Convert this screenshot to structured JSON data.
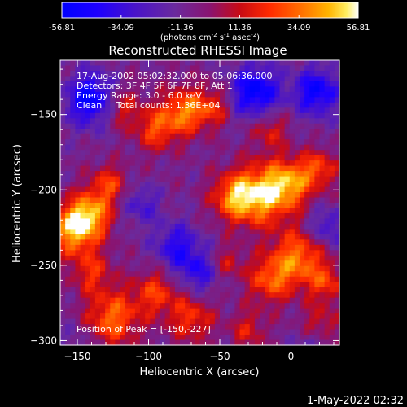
{
  "chart_data": {
    "type": "heatmap",
    "title": "Reconstructed RHESSI Image",
    "xlabel": "Heliocentric X (arcsec)",
    "ylabel": "Heliocentric Y (arcsec)",
    "xlim": [
      -162,
      34
    ],
    "ylim": [
      -303,
      -114
    ],
    "x_ticks": [
      -150,
      -100,
      -50,
      0
    ],
    "y_ticks": [
      -150,
      -200,
      -250,
      -300
    ],
    "colorbar": {
      "ticks": [
        "-56.81",
        "-34.09",
        "-11.36",
        "11.36",
        "34.09",
        "56.81"
      ],
      "unit_text": "(photons cm",
      "unit_sup1": "-2",
      "unit_mid1": " s",
      "unit_sup2": "-1",
      "unit_mid2": " asec",
      "unit_sup3": "-2",
      "unit_end": ")",
      "range": [
        -56.81,
        56.81
      ]
    },
    "info_lines": [
      "17-Aug-2002 05:02:32.000 to 05:06:36.000",
      "Detectors: 3F 4F 5F 6F 7F 8F, Att 1",
      "Energy Range: 3.0 - 6.0 keV",
      "Clean     Total counts: 1.36E+04"
    ],
    "peak_label": "Position of Peak = [-150,-227]",
    "peak": {
      "x": -150,
      "y": -227,
      "value": 56.81
    },
    "intensity_blobs": [
      {
        "x": -152,
        "y": -226,
        "value": 55,
        "sigma": 12
      },
      {
        "x": -140,
        "y": -215,
        "value": 38,
        "sigma": 10
      },
      {
        "x": -128,
        "y": -196,
        "value": 30,
        "sigma": 9
      },
      {
        "x": -20,
        "y": -203,
        "value": 52,
        "sigma": 14
      },
      {
        "x": -40,
        "y": -205,
        "value": 40,
        "sigma": 11
      },
      {
        "x": 0,
        "y": -195,
        "value": 40,
        "sigma": 11
      },
      {
        "x": 20,
        "y": -186,
        "value": 30,
        "sigma": 9
      },
      {
        "x": -75,
        "y": -148,
        "value": 42,
        "sigma": 11
      },
      {
        "x": -95,
        "y": -160,
        "value": 32,
        "sigma": 10
      },
      {
        "x": -55,
        "y": -145,
        "value": 26,
        "sigma": 9
      },
      {
        "x": -120,
        "y": -145,
        "value": 26,
        "sigma": 10
      },
      {
        "x": -15,
        "y": -160,
        "value": 24,
        "sigma": 9
      },
      {
        "x": 5,
        "y": -245,
        "value": 42,
        "sigma": 13
      },
      {
        "x": -15,
        "y": -260,
        "value": 34,
        "sigma": 11
      },
      {
        "x": 25,
        "y": -262,
        "value": 28,
        "sigma": 9
      },
      {
        "x": -125,
        "y": -285,
        "value": 40,
        "sigma": 13
      },
      {
        "x": -95,
        "y": -268,
        "value": 30,
        "sigma": 11
      },
      {
        "x": -140,
        "y": -255,
        "value": 26,
        "sigma": 10
      },
      {
        "x": -70,
        "y": -285,
        "value": 30,
        "sigma": 11
      },
      {
        "x": -30,
        "y": -293,
        "value": 22,
        "sigma": 9
      },
      {
        "x": 20,
        "y": -290,
        "value": 24,
        "sigma": 9
      },
      {
        "x": -45,
        "y": -248,
        "value": 20,
        "sigma": 8
      }
    ],
    "negative_blobs": [
      {
        "x": -140,
        "y": -140,
        "value": -50,
        "sigma": 12
      },
      {
        "x": -25,
        "y": -135,
        "value": -48,
        "sigma": 12
      },
      {
        "x": 18,
        "y": -135,
        "value": -44,
        "sigma": 11
      },
      {
        "x": -80,
        "y": -238,
        "value": -32,
        "sigma": 11
      },
      {
        "x": -65,
        "y": -255,
        "value": -28,
        "sigma": 10
      },
      {
        "x": -105,
        "y": -210,
        "value": -22,
        "sigma": 9
      },
      {
        "x": 25,
        "y": -225,
        "value": -26,
        "sigma": 9
      },
      {
        "x": 15,
        "y": -300,
        "value": -16,
        "sigma": 8
      },
      {
        "x": -150,
        "y": -300,
        "value": -10,
        "sigma": 8
      }
    ]
  },
  "timestamp": "1-May-2022 02:32",
  "colors": {
    "background": "#000000",
    "foreground": "#ffffff"
  }
}
